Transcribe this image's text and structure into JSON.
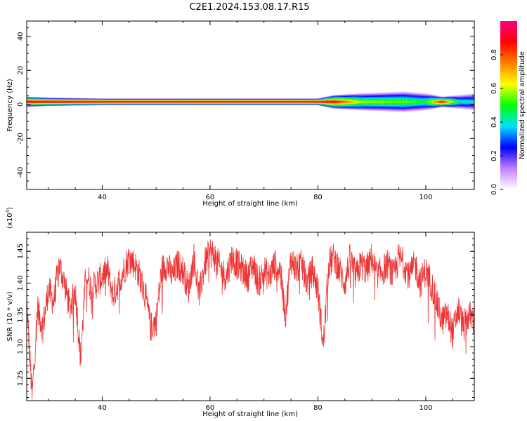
{
  "figure": {
    "title": "C2E1.2024.153.08.17.R15"
  },
  "chart_data": [
    {
      "type": "heatmap",
      "xlabel": "Height of straight line (km)",
      "ylabel": "Frequency (Hz)",
      "xlim": [
        26,
        109
      ],
      "ylim": [
        -50,
        49
      ],
      "xticks": [
        40,
        60,
        80,
        100
      ],
      "yticks": [
        -40,
        -20,
        0,
        20,
        40
      ],
      "band_center_hz": 1.5,
      "band_profile": [
        {
          "x": 26,
          "halfwidth": 3,
          "peak": 0.95
        },
        {
          "x": 30,
          "halfwidth": 2.5,
          "peak": 0.95
        },
        {
          "x": 40,
          "halfwidth": 2,
          "peak": 0.95
        },
        {
          "x": 60,
          "halfwidth": 2,
          "peak": 0.95
        },
        {
          "x": 80,
          "halfwidth": 2,
          "peak": 0.95
        },
        {
          "x": 83,
          "halfwidth": 4,
          "peak": 0.9
        },
        {
          "x": 88,
          "halfwidth": 5,
          "peak": 0.6
        },
        {
          "x": 96,
          "halfwidth": 6,
          "peak": 0.55
        },
        {
          "x": 100,
          "halfwidth": 5,
          "peak": 0.5
        },
        {
          "x": 103,
          "halfwidth": 3,
          "peak": 0.9
        },
        {
          "x": 106,
          "halfwidth": 4,
          "peak": 0.45
        },
        {
          "x": 109,
          "halfwidth": 5,
          "peak": 0.4
        }
      ],
      "colorbar": {
        "label": "Normalized spectral amplitude",
        "range": [
          0.0,
          1.0
        ],
        "ticks": [
          0.0,
          0.2,
          0.4,
          0.6,
          0.8
        ],
        "tick_labels": [
          "0.0",
          "0.2",
          "0.4",
          "0.6",
          "0.8"
        ],
        "colormap": [
          "#ffffff",
          "#c080ff",
          "#0000ff",
          "#00e0ff",
          "#00ff00",
          "#ffff00",
          "#ff8000",
          "#ff0000",
          "#ff0080"
        ]
      }
    },
    {
      "type": "line",
      "xlabel": "Height of straight line (km)",
      "ylabel": "SNR (10 * v/v)",
      "multiplier_label": "(x10",
      "multiplier_exp": "4",
      "multiplier_close": ")",
      "xlim": [
        26,
        109
      ],
      "ylim": [
        1.215,
        1.48
      ],
      "xticks": [
        40,
        60,
        80,
        100
      ],
      "yticks": [
        1.25,
        1.3,
        1.35,
        1.4,
        1.45
      ],
      "ytick_labels": [
        "1.25",
        "1.30",
        "1.35",
        "1.40",
        "1.45"
      ],
      "line_color": "#ee3333",
      "series": [
        {
          "x": [
            26,
            27,
            28,
            29,
            30,
            31,
            32,
            33,
            34,
            35,
            36,
            37,
            38,
            39,
            40,
            41,
            42,
            43,
            44,
            45,
            46,
            47,
            48,
            49,
            50,
            51,
            52,
            53,
            54,
            55,
            56,
            57,
            58,
            59,
            60,
            61,
            62,
            63,
            64,
            65,
            66,
            67,
            68,
            69,
            70,
            71,
            72,
            73,
            74,
            75,
            76,
            77,
            78,
            79,
            80,
            81,
            82,
            83,
            84,
            85,
            86,
            87,
            88,
            89,
            90,
            91,
            92,
            93,
            94,
            95,
            96,
            97,
            98,
            99,
            100,
            101,
            102,
            103,
            104,
            105,
            106,
            107,
            108,
            109
          ],
          "y": [
            1.37,
            1.22,
            1.36,
            1.33,
            1.39,
            1.37,
            1.43,
            1.4,
            1.36,
            1.39,
            1.28,
            1.42,
            1.39,
            1.4,
            1.41,
            1.42,
            1.38,
            1.4,
            1.42,
            1.44,
            1.43,
            1.41,
            1.38,
            1.33,
            1.34,
            1.42,
            1.43,
            1.41,
            1.43,
            1.42,
            1.39,
            1.44,
            1.38,
            1.43,
            1.45,
            1.44,
            1.42,
            1.41,
            1.44,
            1.43,
            1.42,
            1.41,
            1.43,
            1.4,
            1.42,
            1.41,
            1.43,
            1.42,
            1.35,
            1.44,
            1.42,
            1.43,
            1.4,
            1.42,
            1.39,
            1.3,
            1.43,
            1.44,
            1.42,
            1.4,
            1.44,
            1.41,
            1.43,
            1.42,
            1.44,
            1.41,
            1.42,
            1.43,
            1.41,
            1.44,
            1.43,
            1.41,
            1.43,
            1.4,
            1.42,
            1.4,
            1.37,
            1.34,
            1.35,
            1.32,
            1.36,
            1.33,
            1.35,
            1.34
          ]
        }
      ]
    }
  ]
}
